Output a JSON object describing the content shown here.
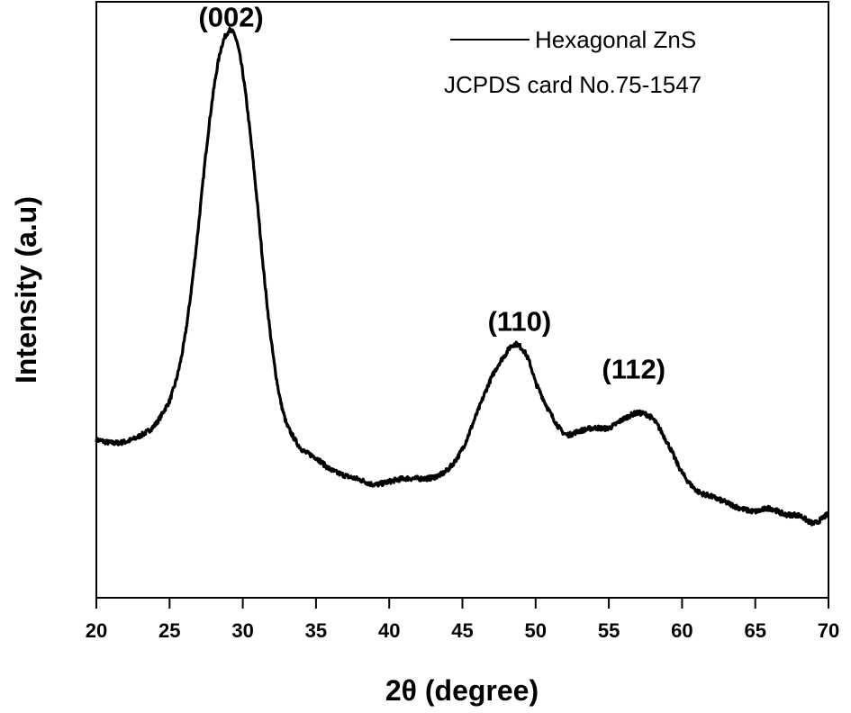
{
  "chart_data": {
    "type": "line",
    "xlabel": "2θ (degree)",
    "ylabel": "Intensity (a.u)",
    "xlim": [
      20,
      70
    ],
    "ylim": [
      0,
      1
    ],
    "y_ticks_labeled": false,
    "x_ticks": [
      20,
      25,
      30,
      35,
      40,
      45,
      50,
      55,
      60,
      65,
      70
    ],
    "x_tick_labels": [
      "20",
      "25",
      "30",
      "35",
      "40",
      "45",
      "50",
      "55",
      "60",
      "65",
      "70"
    ],
    "grid": false,
    "legend": {
      "placement": "top-right",
      "entries": [
        "Hexagonal ZnS",
        "JCPDS card No.75-1547"
      ]
    },
    "annotations": [
      {
        "text": "(002)",
        "x": 29.2,
        "y": 0.94
      },
      {
        "text": "(110)",
        "x": 48.9,
        "y": 0.43
      },
      {
        "text": "(112)",
        "x": 56.7,
        "y": 0.35
      }
    ],
    "series": [
      {
        "name": "Hexagonal ZnS",
        "color": "#000000",
        "x": [
          20,
          21,
          22,
          23,
          24,
          25,
          25.5,
          26,
          26.5,
          27,
          27.5,
          28,
          28.5,
          29,
          29.2,
          29.5,
          30,
          30.5,
          31,
          31.5,
          32,
          32.5,
          33,
          34,
          35,
          36,
          37,
          38,
          39,
          40,
          41,
          42,
          43,
          44,
          45,
          46,
          47,
          48,
          48.5,
          49,
          49.5,
          50,
          51,
          52,
          53,
          54,
          55,
          56,
          57,
          58,
          59,
          60,
          61,
          62,
          63,
          64,
          65,
          66,
          67,
          68,
          69,
          70
        ],
        "y": [
          0.265,
          0.26,
          0.262,
          0.272,
          0.29,
          0.33,
          0.37,
          0.43,
          0.52,
          0.63,
          0.75,
          0.85,
          0.92,
          0.95,
          0.95,
          0.94,
          0.88,
          0.78,
          0.66,
          0.53,
          0.42,
          0.34,
          0.29,
          0.25,
          0.235,
          0.215,
          0.205,
          0.198,
          0.19,
          0.195,
          0.2,
          0.2,
          0.202,
          0.215,
          0.25,
          0.31,
          0.37,
          0.41,
          0.425,
          0.42,
          0.4,
          0.36,
          0.31,
          0.275,
          0.28,
          0.285,
          0.285,
          0.3,
          0.31,
          0.3,
          0.26,
          0.21,
          0.18,
          0.17,
          0.16,
          0.15,
          0.145,
          0.15,
          0.14,
          0.138,
          0.125,
          0.14
        ]
      }
    ]
  }
}
